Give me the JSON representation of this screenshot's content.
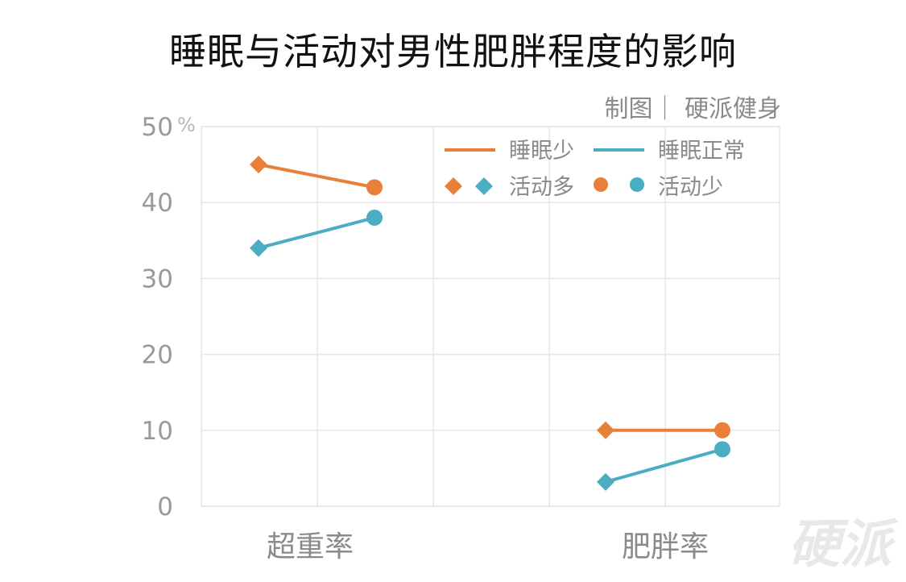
{
  "title": "睡眠与活动对男性肥胖程度的影响",
  "credit": "制图｜ 硬派健身",
  "watermark": "硬派",
  "colors": {
    "orange": "#E8803A",
    "teal": "#4BADC2",
    "grid": "#e6e6e6",
    "axis_text": "#9a9a9a"
  },
  "chart_data": {
    "type": "line",
    "categories": [
      "超重率",
      "肥胖率"
    ],
    "x_subgroups": [
      "活动多",
      "活动少"
    ],
    "y_unit": "%",
    "ylim": [
      0,
      50
    ],
    "y_ticks": [
      0,
      10,
      20,
      30,
      40,
      50
    ],
    "grid": true,
    "legend_position": "top-right",
    "series": [
      {
        "name": "睡眠少",
        "color": "#E8803A",
        "points": [
          {
            "category": "超重率",
            "activity": "活动多",
            "value": 45
          },
          {
            "category": "超重率",
            "activity": "活动少",
            "value": 42
          },
          {
            "category": "肥胖率",
            "activity": "活动多",
            "value": 10
          },
          {
            "category": "肥胖率",
            "activity": "活动少",
            "value": 10
          }
        ]
      },
      {
        "name": "睡眠正常",
        "color": "#4BADC2",
        "points": [
          {
            "category": "超重率",
            "activity": "活动多",
            "value": 34
          },
          {
            "category": "超重率",
            "activity": "活动少",
            "value": 38
          },
          {
            "category": "肥胖率",
            "activity": "活动多",
            "value": 3.2
          },
          {
            "category": "肥胖率",
            "activity": "活动少",
            "value": 7.5
          }
        ]
      }
    ],
    "legend": {
      "lines": [
        "睡眠少",
        "睡眠正常"
      ],
      "markers": [
        "活动多",
        "活动少"
      ]
    }
  }
}
